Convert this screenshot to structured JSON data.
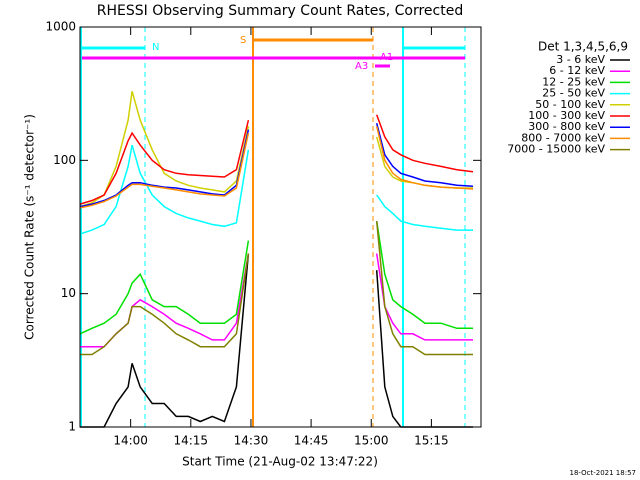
{
  "chart_data": {
    "type": "line",
    "title": "RHESSI Observing Summary Count Rates, Corrected",
    "x_label": "Start Time (21-Aug-02 13:47:22)",
    "y_label": "Corrected Count Rate (s⁻¹ detector⁻¹)",
    "legend_title": "Det 1,3,4,5,6,9",
    "timestamp": "18-Oct-2021 18:57",
    "annotations": [
      "N",
      "S",
      "A3",
      "A1"
    ],
    "log_y": true,
    "xlim": [
      0,
      100
    ],
    "ylim": [
      1,
      1000
    ],
    "yticks": [
      1,
      10,
      100,
      1000
    ],
    "xticks": [
      {
        "value": 12.63,
        "label": "14:00"
      },
      {
        "value": 27.63,
        "label": "14:15"
      },
      {
        "value": 42.63,
        "label": "14:30"
      },
      {
        "value": 57.63,
        "label": "14:45"
      },
      {
        "value": 72.63,
        "label": "15:00"
      },
      {
        "value": 87.63,
        "label": "15:15"
      }
    ],
    "x": [
      0,
      3,
      6,
      9,
      12,
      13,
      15,
      18,
      21,
      24,
      27,
      30,
      33,
      36,
      39,
      42,
      58,
      74,
      76,
      78,
      80,
      83,
      86,
      90,
      94,
      98
    ],
    "series": [
      {
        "name": "3 - 6 keV",
        "color": "#000000",
        "values": [
          1,
          1,
          1,
          1.5,
          2,
          3,
          2,
          1.5,
          1.5,
          1.2,
          1.2,
          1.1,
          1.2,
          1.1,
          2,
          20,
          null,
          15,
          2,
          1.2,
          1,
          1,
          1,
          1,
          1,
          1
        ]
      },
      {
        "name": "6 - 12 keV",
        "color": "#ff00ff",
        "values": [
          4,
          4,
          4,
          5,
          6,
          8,
          9,
          8,
          7,
          6,
          5.5,
          5,
          4.5,
          4.5,
          6,
          20,
          null,
          20,
          8,
          6,
          5,
          5,
          4.5,
          4.5,
          4.5,
          4.5
        ]
      },
      {
        "name": "12 - 25 keV",
        "color": "#00e000",
        "values": [
          5,
          5.5,
          6,
          7,
          10,
          12,
          14,
          9,
          8,
          8,
          7,
          6,
          6,
          6,
          7,
          25,
          null,
          35,
          14,
          9,
          8,
          7,
          6,
          6,
          5.5,
          5.5
        ]
      },
      {
        "name": "25 - 50 keV",
        "color": "#00ffff",
        "values": [
          28,
          30,
          33,
          45,
          90,
          130,
          80,
          55,
          45,
          40,
          37,
          35,
          33,
          32,
          34,
          120,
          null,
          55,
          45,
          40,
          35,
          33,
          32,
          31,
          30,
          30
        ]
      },
      {
        "name": "50 - 100 keV",
        "color": "#d0d000",
        "values": [
          45,
          48,
          55,
          90,
          200,
          330,
          200,
          120,
          80,
          70,
          65,
          62,
          60,
          58,
          70,
          180,
          null,
          150,
          90,
          75,
          70,
          68,
          65,
          63,
          62,
          62
        ]
      },
      {
        "name": "100 - 300 keV",
        "color": "#ff0000",
        "values": [
          47,
          50,
          55,
          80,
          140,
          160,
          130,
          100,
          85,
          80,
          78,
          77,
          76,
          75,
          85,
          200,
          null,
          220,
          150,
          120,
          110,
          100,
          95,
          90,
          85,
          82
        ]
      },
      {
        "name": "300 - 800 keV",
        "color": "#0000ff",
        "values": [
          45,
          47,
          50,
          55,
          65,
          68,
          68,
          65,
          63,
          62,
          60,
          58,
          56,
          55,
          65,
          170,
          null,
          190,
          110,
          90,
          80,
          75,
          70,
          68,
          65,
          64
        ]
      },
      {
        "name": "800 - 7000 keV",
        "color": "#ff8c00",
        "values": [
          44,
          46,
          49,
          54,
          63,
          66,
          66,
          64,
          62,
          60,
          58,
          56,
          55,
          54,
          62,
          160,
          null,
          180,
          100,
          80,
          72,
          68,
          65,
          63,
          62,
          61
        ]
      },
      {
        "name": "7000 - 15000 keV",
        "color": "#808000",
        "values": [
          3.5,
          3.5,
          4,
          5,
          6,
          8,
          8,
          7,
          6,
          5,
          4.5,
          4,
          4,
          4,
          5,
          20,
          null,
          35,
          8,
          5,
          4,
          4,
          3.5,
          3.5,
          3.5,
          3.5
        ]
      }
    ]
  }
}
